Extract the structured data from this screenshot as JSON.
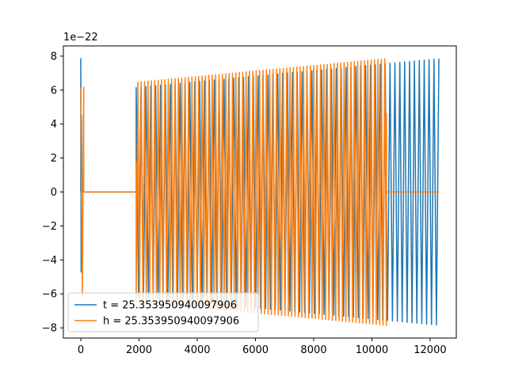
{
  "chart_data": {
    "type": "line",
    "title": "",
    "xlabel": "",
    "ylabel": "",
    "y_offset_label": "1e−22",
    "xlim": [
      -600,
      12900
    ],
    "ylim": [
      -8.6,
      8.6
    ],
    "x_ticks": [
      {
        "value": 0,
        "label": "0"
      },
      {
        "value": 2000,
        "label": "2000"
      },
      {
        "value": 4000,
        "label": "4000"
      },
      {
        "value": 6000,
        "label": "6000"
      },
      {
        "value": 8000,
        "label": "8000"
      },
      {
        "value": 10000,
        "label": "10000"
      },
      {
        "value": 12000,
        "label": "12000"
      }
    ],
    "y_ticks": [
      {
        "value": 8,
        "label": "8"
      },
      {
        "value": 6,
        "label": "6"
      },
      {
        "value": 4,
        "label": "4"
      },
      {
        "value": 2,
        "label": "2"
      },
      {
        "value": 0,
        "label": "0"
      },
      {
        "value": -2,
        "label": "−2"
      },
      {
        "value": -4,
        "label": "−4"
      },
      {
        "value": -6,
        "label": "−6"
      },
      {
        "value": -8,
        "label": "−8"
      }
    ],
    "grid": false,
    "legend_position": "lower-left",
    "series": [
      {
        "name": "t = 25.353950940097906",
        "color": "#1f77b4",
        "spike_x": 0,
        "spike_peak": 7.85,
        "oscillation_start_x": 1900,
        "oscillation_end_x": 12300,
        "amplitude_start": 6.15,
        "amplitude_end": 7.85,
        "cycles": 62
      },
      {
        "name": "h = 25.353950940097906",
        "color": "#ff7f0e",
        "oscillation_start_x": 0,
        "oscillation_end_x": 10500,
        "amplitude_start": 6.15,
        "amplitude_end": 7.85,
        "cycles": 90,
        "gap_start_x": 100,
        "gap_end_x": 1900,
        "flat_after_end_to_x": 12300
      }
    ]
  }
}
